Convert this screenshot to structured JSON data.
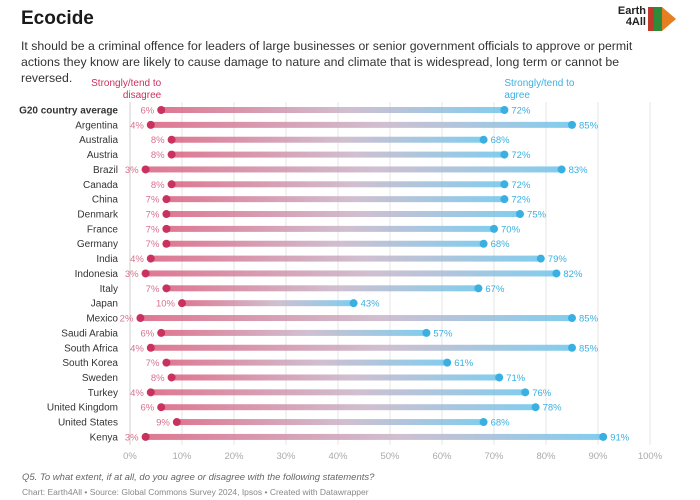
{
  "header": {
    "title": "Ecocide",
    "subtitle": "It should be a criminal offence for leaders of large businesses or senior government officials to approve or permit actions they know are likely to cause damage to nature and climate that is widespread, long term or cannot be reversed.",
    "logo_line1": "Earth",
    "logo_line2": "4All"
  },
  "footer": {
    "note": "Q5. To what extent, if at all, do you agree or disagree with the following statements?",
    "source": "Chart: Earth4All • Source: Global Commons Survey 2024, Ipsos • Created with Datawrapper"
  },
  "colors": {
    "disagree": "#c9325e",
    "agree": "#3ab0e2",
    "grid": "#e6e6e6"
  },
  "chart_data": {
    "type": "dumbbell",
    "title": "Ecocide",
    "xlim": [
      0,
      100
    ],
    "x_ticks": [
      "0%",
      "10%",
      "20%",
      "30%",
      "40%",
      "50%",
      "60%",
      "70%",
      "80%",
      "90%",
      "100%"
    ],
    "grid": true,
    "legend": {
      "disagree_label": "Strongly/tend to disagree",
      "agree_label": "Strongly/tend to agree",
      "disagree_line1": "Strongly/tend to",
      "disagree_line2": "disagree",
      "agree_line1": "Strongly/tend to",
      "agree_line2": "agree"
    },
    "categories": [
      "G20 country average",
      "Argentina",
      "Australia",
      "Austria",
      "Brazil",
      "Canada",
      "China",
      "Denmark",
      "France",
      "Germany",
      "India",
      "Indonesia",
      "Italy",
      "Japan",
      "Mexico",
      "Saudi Arabia",
      "South Africa",
      "South Korea",
      "Sweden",
      "Turkey",
      "United Kingdom",
      "United States",
      "Kenya"
    ],
    "series": [
      {
        "name": "Strongly/tend to disagree",
        "values": [
          6,
          4,
          8,
          8,
          3,
          8,
          7,
          7,
          7,
          7,
          4,
          3,
          7,
          10,
          2,
          6,
          4,
          7,
          8,
          4,
          6,
          9,
          3
        ]
      },
      {
        "name": "Strongly/tend to agree",
        "values": [
          72,
          85,
          68,
          72,
          83,
          72,
          72,
          75,
          70,
          68,
          79,
          82,
          67,
          43,
          85,
          57,
          85,
          61,
          71,
          76,
          78,
          68,
          91
        ]
      }
    ]
  }
}
